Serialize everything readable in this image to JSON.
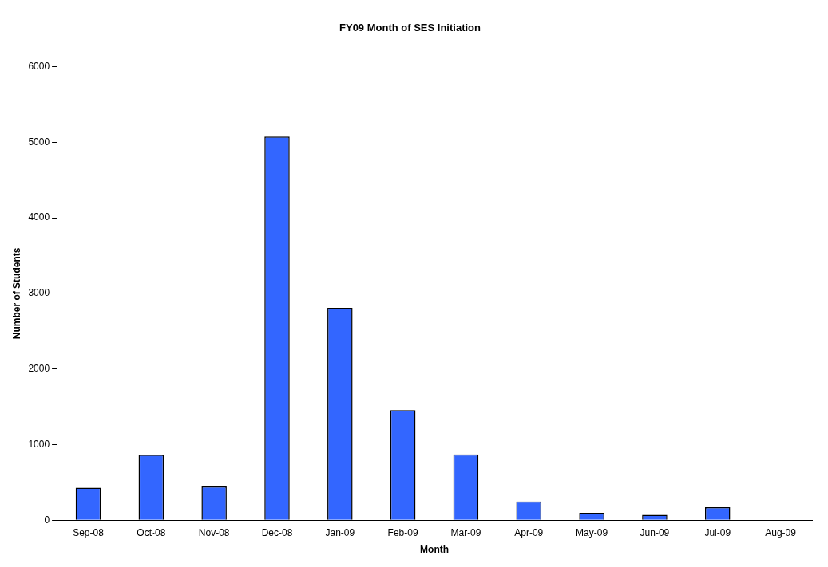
{
  "chart_data": {
    "type": "bar",
    "title": "FY09 Month of SES Initiation",
    "xlabel": "Month",
    "ylabel": "Number of Students",
    "categories": [
      "Sep-08",
      "Oct-08",
      "Nov-08",
      "Dec-08",
      "Jan-09",
      "Feb-09",
      "Mar-09",
      "Apr-09",
      "May-09",
      "Jun-09",
      "Jul-09",
      "Aug-09"
    ],
    "values": [
      430,
      865,
      446,
      5076,
      2809,
      1455,
      870,
      248,
      96,
      70,
      170,
      0
    ],
    "color": "#3366ff",
    "ylim": [
      0,
      6000
    ],
    "yticks": [
      0,
      1000,
      2000,
      3000,
      4000,
      5000,
      6000
    ],
    "grid": false,
    "legend": false
  }
}
